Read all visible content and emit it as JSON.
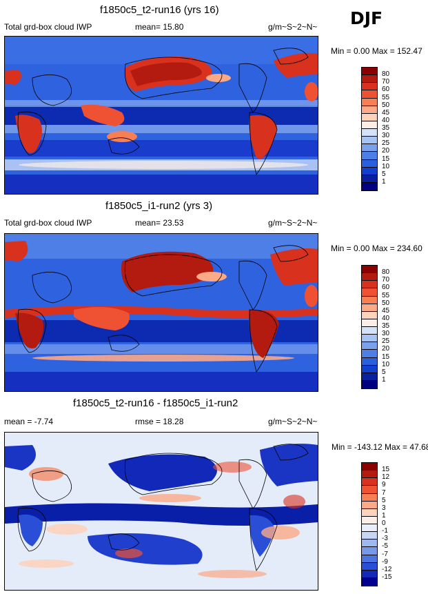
{
  "season": "DJF",
  "panels": [
    {
      "title": "f1850c5_t2-run16 (yrs 16)",
      "left_label": "Total grd-box cloud IWP",
      "center_label": "mean=  15.80",
      "units": "g/m~S~2~N~",
      "minmax": "Min =   0.00 Max = 152.47",
      "levels": [
        "80",
        "70",
        "60",
        "55",
        "50",
        "45",
        "40",
        "35",
        "30",
        "25",
        "20",
        "15",
        "10",
        "5",
        "1"
      ],
      "colors": [
        "#8b0000",
        "#b31a10",
        "#d8321e",
        "#ee5233",
        "#f77e55",
        "#fba987",
        "#fdd3bd",
        "#fbeee6",
        "#d4e2f9",
        "#a7c3f3",
        "#7aa1ec",
        "#4d7fe6",
        "#2a5fe0",
        "#133fcf",
        "#0a1fa0",
        "#000080"
      ]
    },
    {
      "title": "f1850c5_i1-run2 (yrs 3)",
      "left_label": "Total grd-box cloud IWP",
      "center_label": "mean=  23.53",
      "units": "g/m~S~2~N~",
      "minmax": "Min =   0.00 Max = 234.60",
      "levels": [
        "80",
        "70",
        "60",
        "55",
        "50",
        "45",
        "40",
        "35",
        "30",
        "25",
        "20",
        "15",
        "10",
        "5",
        "1"
      ],
      "colors": [
        "#8b0000",
        "#b31a10",
        "#d8321e",
        "#ee5233",
        "#f77e55",
        "#fba987",
        "#fdd3bd",
        "#fbeee6",
        "#d4e2f9",
        "#a7c3f3",
        "#7aa1ec",
        "#4d7fe6",
        "#2a5fe0",
        "#133fcf",
        "#0a1fa0",
        "#000080"
      ]
    },
    {
      "title": "f1850c5_t2-run16 - f1850c5_i1-run2",
      "left_label": "mean =  -7.74",
      "center_label": "rmse =  18.28",
      "units": "g/m~S~2~N~",
      "minmax": "Min = -143.12 Max =  47.68",
      "levels": [
        "15",
        "12",
        "9",
        "7",
        "5",
        "3",
        "1",
        "0",
        "-1",
        "-3",
        "-5",
        "-7",
        "-9",
        "-12",
        "-15"
      ],
      "colors": [
        "#8b0000",
        "#b31a10",
        "#d8321e",
        "#ee5233",
        "#f77e55",
        "#fba987",
        "#fdd3bd",
        "#fbeee6",
        "#e9eefa",
        "#c7d6f6",
        "#9fb8f0",
        "#7797e9",
        "#4d73e1",
        "#2a4fd6",
        "#1228b8",
        "#000090"
      ]
    }
  ]
}
